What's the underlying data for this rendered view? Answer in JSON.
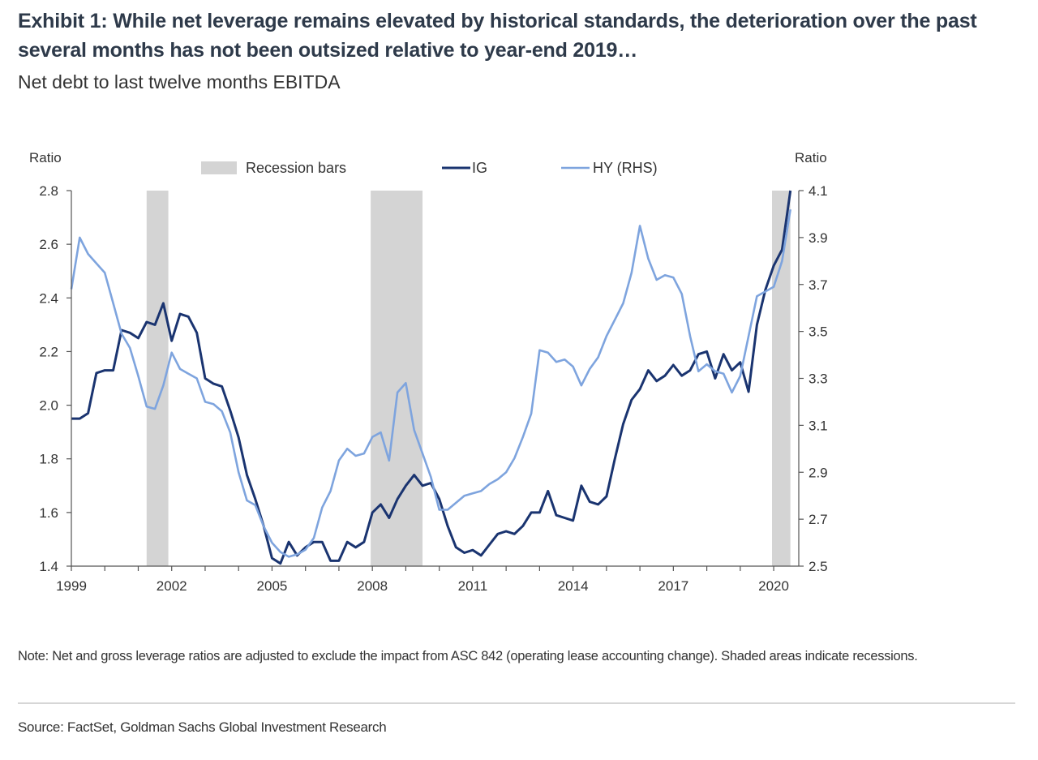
{
  "header": {
    "title": "Exhibit 1: While net leverage remains elevated by historical standards, the deterioration over the past several months has not been outsized relative to year-end 2019…",
    "subtitle": "Net debt to last twelve months EBITDA"
  },
  "footer": {
    "note": "Note: Net and gross leverage ratios are adjusted to exclude the impact from ASC 842 (operating lease accounting change). Shaded areas indicate recessions.",
    "source": "Source: FactSet, Goldman Sachs Global Investment Research"
  },
  "chart_data": {
    "type": "line",
    "y_left_label": "Ratio",
    "y_right_label": "Ratio",
    "x_ticks": [
      "1999",
      "2002",
      "2005",
      "2008",
      "2011",
      "2014",
      "2017",
      "2020"
    ],
    "xlim": [
      1999,
      2020.75
    ],
    "y_left_ticks": [
      "1.4",
      "1.6",
      "1.8",
      "2.0",
      "2.2",
      "2.4",
      "2.6",
      "2.8"
    ],
    "ylim_left": [
      1.4,
      2.8
    ],
    "y_right_ticks": [
      "2.5",
      "2.7",
      "2.9",
      "3.1",
      "3.3",
      "3.5",
      "3.7",
      "3.9",
      "4.1"
    ],
    "ylim_right": [
      2.5,
      4.1
    ],
    "legend": [
      "Recession bars",
      "IG",
      "HY (RHS)"
    ],
    "legend_position": "top",
    "colors": {
      "recession": "#d4d4d4",
      "IG": "#1a3470",
      "HY": "#7ea4de"
    },
    "recessions": [
      [
        2001.25,
        2001.9
      ],
      [
        2007.95,
        2009.5
      ],
      [
        2019.95,
        2020.5
      ]
    ],
    "series": [
      {
        "name": "IG",
        "axis": "left",
        "points": [
          [
            1999.0,
            1.95
          ],
          [
            1999.25,
            1.95
          ],
          [
            1999.5,
            1.97
          ],
          [
            1999.75,
            2.12
          ],
          [
            2000.0,
            2.13
          ],
          [
            2000.25,
            2.13
          ],
          [
            2000.5,
            2.28
          ],
          [
            2000.75,
            2.27
          ],
          [
            2001.0,
            2.25
          ],
          [
            2001.25,
            2.31
          ],
          [
            2001.5,
            2.3
          ],
          [
            2001.75,
            2.38
          ],
          [
            2002.0,
            2.24
          ],
          [
            2002.25,
            2.34
          ],
          [
            2002.5,
            2.33
          ],
          [
            2002.75,
            2.27
          ],
          [
            2003.0,
            2.1
          ],
          [
            2003.25,
            2.08
          ],
          [
            2003.5,
            2.07
          ],
          [
            2003.75,
            1.98
          ],
          [
            2004.0,
            1.88
          ],
          [
            2004.25,
            1.74
          ],
          [
            2004.5,
            1.65
          ],
          [
            2004.75,
            1.55
          ],
          [
            2005.0,
            1.43
          ],
          [
            2005.25,
            1.41
          ],
          [
            2005.5,
            1.49
          ],
          [
            2005.75,
            1.44
          ],
          [
            2006.0,
            1.47
          ],
          [
            2006.25,
            1.49
          ],
          [
            2006.5,
            1.49
          ],
          [
            2006.75,
            1.42
          ],
          [
            2007.0,
            1.42
          ],
          [
            2007.25,
            1.49
          ],
          [
            2007.5,
            1.47
          ],
          [
            2007.75,
            1.49
          ],
          [
            2008.0,
            1.6
          ],
          [
            2008.25,
            1.63
          ],
          [
            2008.5,
            1.58
          ],
          [
            2008.75,
            1.65
          ],
          [
            2009.0,
            1.7
          ],
          [
            2009.25,
            1.74
          ],
          [
            2009.5,
            1.7
          ],
          [
            2009.75,
            1.71
          ],
          [
            2010.0,
            1.65
          ],
          [
            2010.25,
            1.55
          ],
          [
            2010.5,
            1.47
          ],
          [
            2010.75,
            1.45
          ],
          [
            2011.0,
            1.46
          ],
          [
            2011.25,
            1.44
          ],
          [
            2011.5,
            1.48
          ],
          [
            2011.75,
            1.52
          ],
          [
            2012.0,
            1.53
          ],
          [
            2012.25,
            1.52
          ],
          [
            2012.5,
            1.55
          ],
          [
            2012.75,
            1.6
          ],
          [
            2013.0,
            1.6
          ],
          [
            2013.25,
            1.68
          ],
          [
            2013.5,
            1.59
          ],
          [
            2013.75,
            1.58
          ],
          [
            2014.0,
            1.57
          ],
          [
            2014.25,
            1.7
          ],
          [
            2014.5,
            1.64
          ],
          [
            2014.75,
            1.63
          ],
          [
            2015.0,
            1.66
          ],
          [
            2015.25,
            1.8
          ],
          [
            2015.5,
            1.93
          ],
          [
            2015.75,
            2.02
          ],
          [
            2016.0,
            2.06
          ],
          [
            2016.25,
            2.13
          ],
          [
            2016.5,
            2.09
          ],
          [
            2016.75,
            2.11
          ],
          [
            2017.0,
            2.15
          ],
          [
            2017.25,
            2.11
          ],
          [
            2017.5,
            2.13
          ],
          [
            2017.75,
            2.19
          ],
          [
            2018.0,
            2.2
          ],
          [
            2018.25,
            2.1
          ],
          [
            2018.5,
            2.19
          ],
          [
            2018.75,
            2.13
          ],
          [
            2019.0,
            2.16
          ],
          [
            2019.25,
            2.05
          ],
          [
            2019.5,
            2.3
          ],
          [
            2019.75,
            2.43
          ],
          [
            2020.0,
            2.52
          ],
          [
            2020.25,
            2.58
          ],
          [
            2020.5,
            2.8
          ]
        ]
      },
      {
        "name": "HY (RHS)",
        "axis": "right",
        "points": [
          [
            1999.0,
            3.68
          ],
          [
            1999.25,
            3.9
          ],
          [
            1999.5,
            3.83
          ],
          [
            1999.75,
            3.79
          ],
          [
            2000.0,
            3.75
          ],
          [
            2000.25,
            3.62
          ],
          [
            2000.5,
            3.49
          ],
          [
            2000.75,
            3.43
          ],
          [
            2001.0,
            3.31
          ],
          [
            2001.25,
            3.18
          ],
          [
            2001.5,
            3.17
          ],
          [
            2001.75,
            3.27
          ],
          [
            2002.0,
            3.41
          ],
          [
            2002.25,
            3.34
          ],
          [
            2002.5,
            3.32
          ],
          [
            2002.75,
            3.3
          ],
          [
            2003.0,
            3.2
          ],
          [
            2003.25,
            3.19
          ],
          [
            2003.5,
            3.16
          ],
          [
            2003.75,
            3.07
          ],
          [
            2004.0,
            2.9
          ],
          [
            2004.25,
            2.78
          ],
          [
            2004.5,
            2.76
          ],
          [
            2004.75,
            2.67
          ],
          [
            2005.0,
            2.6
          ],
          [
            2005.25,
            2.56
          ],
          [
            2005.5,
            2.54
          ],
          [
            2005.75,
            2.55
          ],
          [
            2006.0,
            2.57
          ],
          [
            2006.25,
            2.62
          ],
          [
            2006.5,
            2.75
          ],
          [
            2006.75,
            2.82
          ],
          [
            2007.0,
            2.95
          ],
          [
            2007.25,
            3.0
          ],
          [
            2007.5,
            2.97
          ],
          [
            2007.75,
            2.98
          ],
          [
            2008.0,
            3.05
          ],
          [
            2008.25,
            3.07
          ],
          [
            2008.5,
            2.95
          ],
          [
            2008.75,
            3.24
          ],
          [
            2009.0,
            3.28
          ],
          [
            2009.25,
            3.08
          ],
          [
            2009.5,
            2.98
          ],
          [
            2009.75,
            2.88
          ],
          [
            2010.0,
            2.74
          ],
          [
            2010.25,
            2.74
          ],
          [
            2010.5,
            2.77
          ],
          [
            2010.75,
            2.8
          ],
          [
            2011.0,
            2.81
          ],
          [
            2011.25,
            2.82
          ],
          [
            2011.5,
            2.85
          ],
          [
            2011.75,
            2.87
          ],
          [
            2012.0,
            2.9
          ],
          [
            2012.25,
            2.96
          ],
          [
            2012.5,
            3.05
          ],
          [
            2012.75,
            3.15
          ],
          [
            2013.0,
            3.42
          ],
          [
            2013.25,
            3.41
          ],
          [
            2013.5,
            3.37
          ],
          [
            2013.75,
            3.38
          ],
          [
            2014.0,
            3.35
          ],
          [
            2014.25,
            3.27
          ],
          [
            2014.5,
            3.34
          ],
          [
            2014.75,
            3.39
          ],
          [
            2015.0,
            3.48
          ],
          [
            2015.25,
            3.55
          ],
          [
            2015.5,
            3.62
          ],
          [
            2015.75,
            3.75
          ],
          [
            2016.0,
            3.95
          ],
          [
            2016.25,
            3.81
          ],
          [
            2016.5,
            3.72
          ],
          [
            2016.75,
            3.74
          ],
          [
            2017.0,
            3.73
          ],
          [
            2017.25,
            3.66
          ],
          [
            2017.5,
            3.48
          ],
          [
            2017.75,
            3.33
          ],
          [
            2018.0,
            3.36
          ],
          [
            2018.25,
            3.33
          ],
          [
            2018.5,
            3.32
          ],
          [
            2018.75,
            3.24
          ],
          [
            2019.0,
            3.31
          ],
          [
            2019.25,
            3.48
          ],
          [
            2019.5,
            3.65
          ],
          [
            2019.75,
            3.67
          ],
          [
            2020.0,
            3.69
          ],
          [
            2020.25,
            3.8
          ],
          [
            2020.5,
            4.02
          ]
        ]
      }
    ]
  }
}
